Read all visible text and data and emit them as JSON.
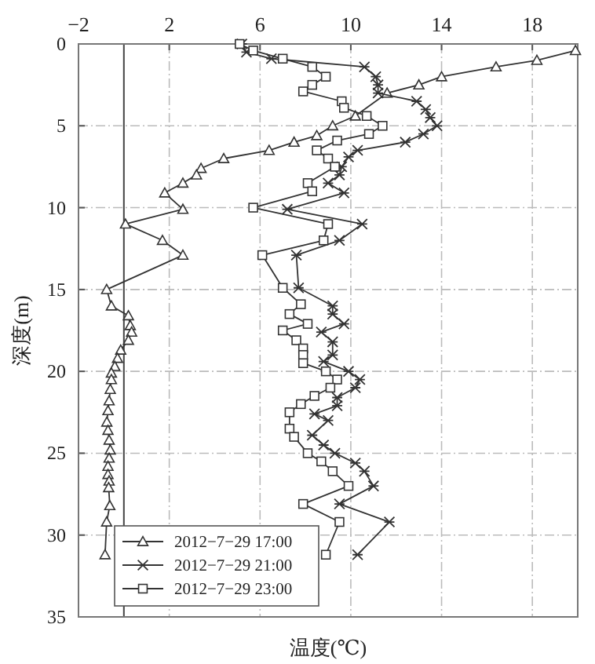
{
  "chart_data": {
    "type": "line",
    "xlabel": "温度(℃)",
    "ylabel": "深度(m)",
    "orientation": "horizontal",
    "xlim": [
      -2,
      20
    ],
    "xticks": [
      {
        "value": -2,
        "label": "−2"
      },
      2,
      6,
      10,
      14,
      18
    ],
    "ylim": [
      35,
      0
    ],
    "yticks": [
      0,
      5,
      10,
      15,
      20,
      25,
      30,
      35
    ],
    "grid": true,
    "legend": "bottom left",
    "ref_lines": [
      {
        "axis": "x",
        "value": 0,
        "color": "#444444",
        "line_style": "solid"
      }
    ],
    "series": [
      {
        "name": "2012−7−29 17:00",
        "color": "#333333",
        "marker": "triangle",
        "values": [
          19.9,
          18.2,
          16.4,
          14.0,
          13.0,
          11.6,
          10.2,
          9.2,
          8.5,
          7.5,
          6.4,
          4.4,
          3.4,
          3.2,
          2.6,
          1.8,
          2.6,
          0.07,
          1.7,
          2.6,
          -0.76,
          -0.55,
          0.2,
          0.28,
          0.34,
          0.2,
          -0.14,
          -0.28,
          -0.4,
          -0.55,
          -0.55,
          -0.6,
          -0.65,
          -0.7,
          -0.75,
          -0.7,
          -0.65,
          -0.6,
          -0.65,
          -0.7,
          -0.7,
          -0.65,
          -0.67,
          -0.62,
          -0.76,
          -0.83
        ],
        "x": [
          0.4,
          1.0,
          1.4,
          2.0,
          2.5,
          3.0,
          4.4,
          5.0,
          5.6,
          6.0,
          6.5,
          7.0,
          7.6,
          8.0,
          8.5,
          9.1,
          10.1,
          11.0,
          12.0,
          12.9,
          15.0,
          16.0,
          16.6,
          17.2,
          17.6,
          18.1,
          18.7,
          19.2,
          19.7,
          20.1,
          20.5,
          21.1,
          21.8,
          22.4,
          23.1,
          23.6,
          24.2,
          24.8,
          25.3,
          25.8,
          26.3,
          26.7,
          27.1,
          28.2,
          29.2,
          31.2
        ]
      },
      {
        "name": "2012−7−29 21:00",
        "color": "#333333",
        "marker": "cross",
        "values": [
          5.2,
          5.4,
          6.5,
          10.6,
          11.1,
          11.2,
          11.2,
          12.9,
          13.3,
          13.5,
          13.8,
          13.2,
          12.4,
          10.3,
          9.9,
          9.6,
          9.5,
          9.0,
          9.7,
          7.2,
          10.5,
          9.5,
          7.6,
          7.7,
          9.2,
          9.2,
          9.7,
          8.7,
          9.2,
          9.2,
          8.8,
          9.9,
          10.4,
          10.2,
          9.4,
          9.4,
          8.4,
          9.0,
          8.3,
          8.8,
          9.3,
          10.2,
          10.6,
          11.0,
          9.5,
          11.7,
          10.3
        ],
        "x": [
          0,
          0.5,
          0.9,
          1.4,
          2.0,
          2.5,
          3.0,
          3.5,
          4.0,
          4.5,
          5.0,
          5.5,
          6.0,
          6.5,
          6.9,
          7.5,
          8.0,
          8.5,
          9.1,
          10.1,
          11.0,
          12.0,
          12.9,
          14.9,
          16.0,
          16.5,
          17.1,
          17.6,
          18.2,
          19.0,
          19.4,
          20.0,
          20.5,
          21.0,
          21.6,
          22.1,
          22.6,
          23.0,
          23.9,
          24.5,
          25.0,
          25.6,
          26.1,
          27.0,
          28.1,
          29.2,
          31.2
        ]
      },
      {
        "name": "2012−7−29 23:00",
        "color": "#333333",
        "marker": "square",
        "values": [
          5.1,
          5.7,
          7.0,
          8.3,
          8.9,
          8.3,
          7.9,
          9.6,
          9.7,
          10.7,
          11.4,
          10.8,
          9.4,
          8.5,
          9.0,
          9.3,
          8.1,
          8.3,
          5.7,
          9.0,
          8.8,
          6.1,
          7.0,
          7.8,
          7.3,
          8.1,
          7.0,
          7.6,
          7.9,
          7.9,
          7.9,
          8.9,
          9.4,
          9.1,
          8.4,
          7.8,
          7.3,
          7.3,
          7.5,
          8.1,
          8.7,
          9.2,
          9.9,
          7.9,
          9.5,
          8.9
        ],
        "x": [
          0,
          0.4,
          0.9,
          1.4,
          2.0,
          2.5,
          2.9,
          3.5,
          3.9,
          4.4,
          5.0,
          5.5,
          5.9,
          6.5,
          7.0,
          7.5,
          8.5,
          9.0,
          10.0,
          11.0,
          12.0,
          12.9,
          14.9,
          15.9,
          16.5,
          17.1,
          17.5,
          18.1,
          18.6,
          19.0,
          19.5,
          20.0,
          20.5,
          21.0,
          21.5,
          22.0,
          22.5,
          23.5,
          24.0,
          25.0,
          25.5,
          26.1,
          27.0,
          28.1,
          29.2,
          31.2
        ]
      }
    ]
  }
}
